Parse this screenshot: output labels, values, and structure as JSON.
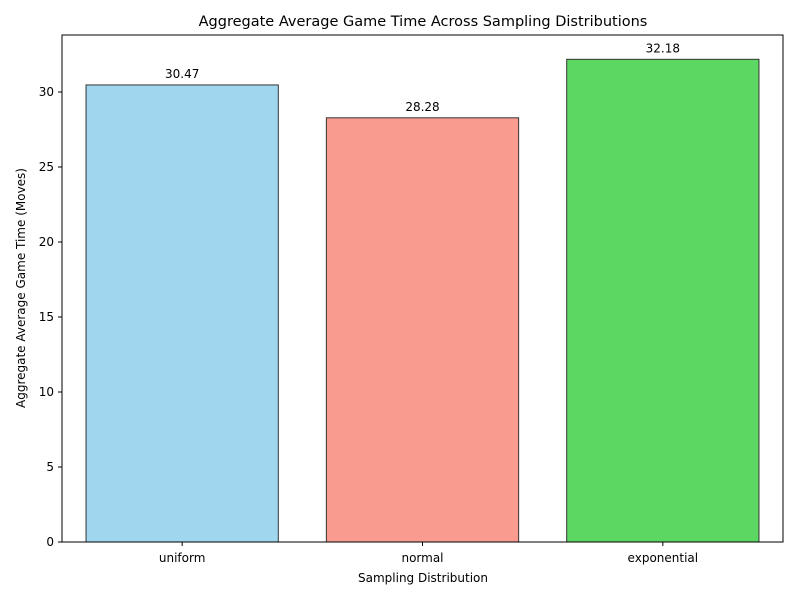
{
  "chart_data": {
    "type": "bar",
    "title": "Aggregate Average Game Time Across Sampling Distributions",
    "xlabel": "Sampling Distribution",
    "ylabel": "Aggregate Average Game Time (Moves)",
    "categories": [
      "uniform",
      "normal",
      "exponential"
    ],
    "values": [
      30.47,
      28.28,
      32.18
    ],
    "data_labels": [
      "30.47",
      "28.28",
      "32.18"
    ],
    "colors": [
      "#a0d6ee",
      "#fa9b8f",
      "#5cd862"
    ],
    "edge_color": "#333333",
    "ylim": [
      0,
      33.8
    ],
    "yticks": [
      0,
      5,
      10,
      15,
      20,
      25,
      30
    ],
    "grid": false
  }
}
